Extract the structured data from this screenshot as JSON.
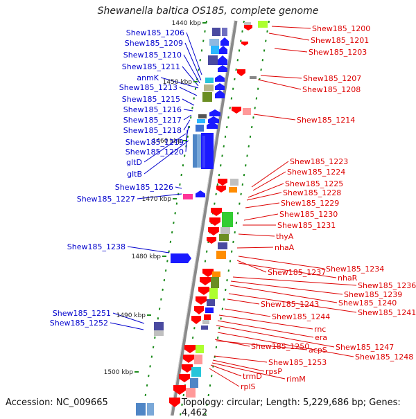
{
  "title": "Shewanella baltica OS185, complete genome",
  "accession": "Accession: NC_009665",
  "topology": "Topology: circular; Length: 5,229,686 bp; Genes: 4,462",
  "colors": {
    "left_label": "#0000cc",
    "right_label": "#dd0000",
    "ring": "#1a8a1a",
    "backbone": "#888888"
  },
  "kbp_ticks": [
    {
      "label": "1440 kbp"
    },
    {
      "label": "1450 kbp"
    },
    {
      "label": "1460 kbp"
    },
    {
      "label": "1470 kbp"
    },
    {
      "label": "1480 kbp"
    },
    {
      "label": "1490 kbp"
    },
    {
      "label": "1500 kbp"
    }
  ],
  "left_genes": [
    {
      "label": "Shew185_1206"
    },
    {
      "label": "Shew185_1209"
    },
    {
      "label": "Shew185_1210"
    },
    {
      "label": "Shew185_1211"
    },
    {
      "label": "anmK"
    },
    {
      "label": "Shew185_1213"
    },
    {
      "label": "Shew185_1215"
    },
    {
      "label": "Shew185_1216"
    },
    {
      "label": "Shew185_1217"
    },
    {
      "label": "Shew185_1218"
    },
    {
      "label": "Shew185_1219"
    },
    {
      "label": "Shew185_1220"
    },
    {
      "label": "gltD"
    },
    {
      "label": "gltB"
    },
    {
      "label": "Shew185_1226"
    },
    {
      "label": "Shew185_1227"
    },
    {
      "label": "Shew185_1238"
    },
    {
      "label": "Shew185_1251"
    },
    {
      "label": "Shew185_1252"
    }
  ],
  "right_genes": [
    {
      "label": "Shew185_1200"
    },
    {
      "label": "Shew185_1201"
    },
    {
      "label": "Shew185_1203"
    },
    {
      "label": "Shew185_1207"
    },
    {
      "label": "Shew185_1208"
    },
    {
      "label": "Shew185_1214"
    },
    {
      "label": "Shew185_1223"
    },
    {
      "label": "Shew185_1224"
    },
    {
      "label": "Shew185_1225"
    },
    {
      "label": "Shew185_1228"
    },
    {
      "label": "Shew185_1229"
    },
    {
      "label": "Shew185_1230"
    },
    {
      "label": "Shew185_1231"
    },
    {
      "label": "thyA"
    },
    {
      "label": "nhaA"
    },
    {
      "label": "Shew185_1234"
    },
    {
      "label": "Shew185_1237"
    },
    {
      "label": "nhaR"
    },
    {
      "label": "Shew185_1236"
    },
    {
      "label": "Shew185_1239"
    },
    {
      "label": "Shew185_1240"
    },
    {
      "label": "Shew185_1243"
    },
    {
      "label": "Shew185_1241"
    },
    {
      "label": "Shew185_1244"
    },
    {
      "label": "rnc"
    },
    {
      "label": "era"
    },
    {
      "label": "Shew185_1250"
    },
    {
      "label": "Shew185_1247"
    },
    {
      "label": "acpS"
    },
    {
      "label": "Shew185_1248"
    },
    {
      "label": "Shew185_1253"
    },
    {
      "label": "rpsP"
    },
    {
      "label": "rimM"
    },
    {
      "label": "trmD"
    },
    {
      "label": "rplS"
    }
  ]
}
